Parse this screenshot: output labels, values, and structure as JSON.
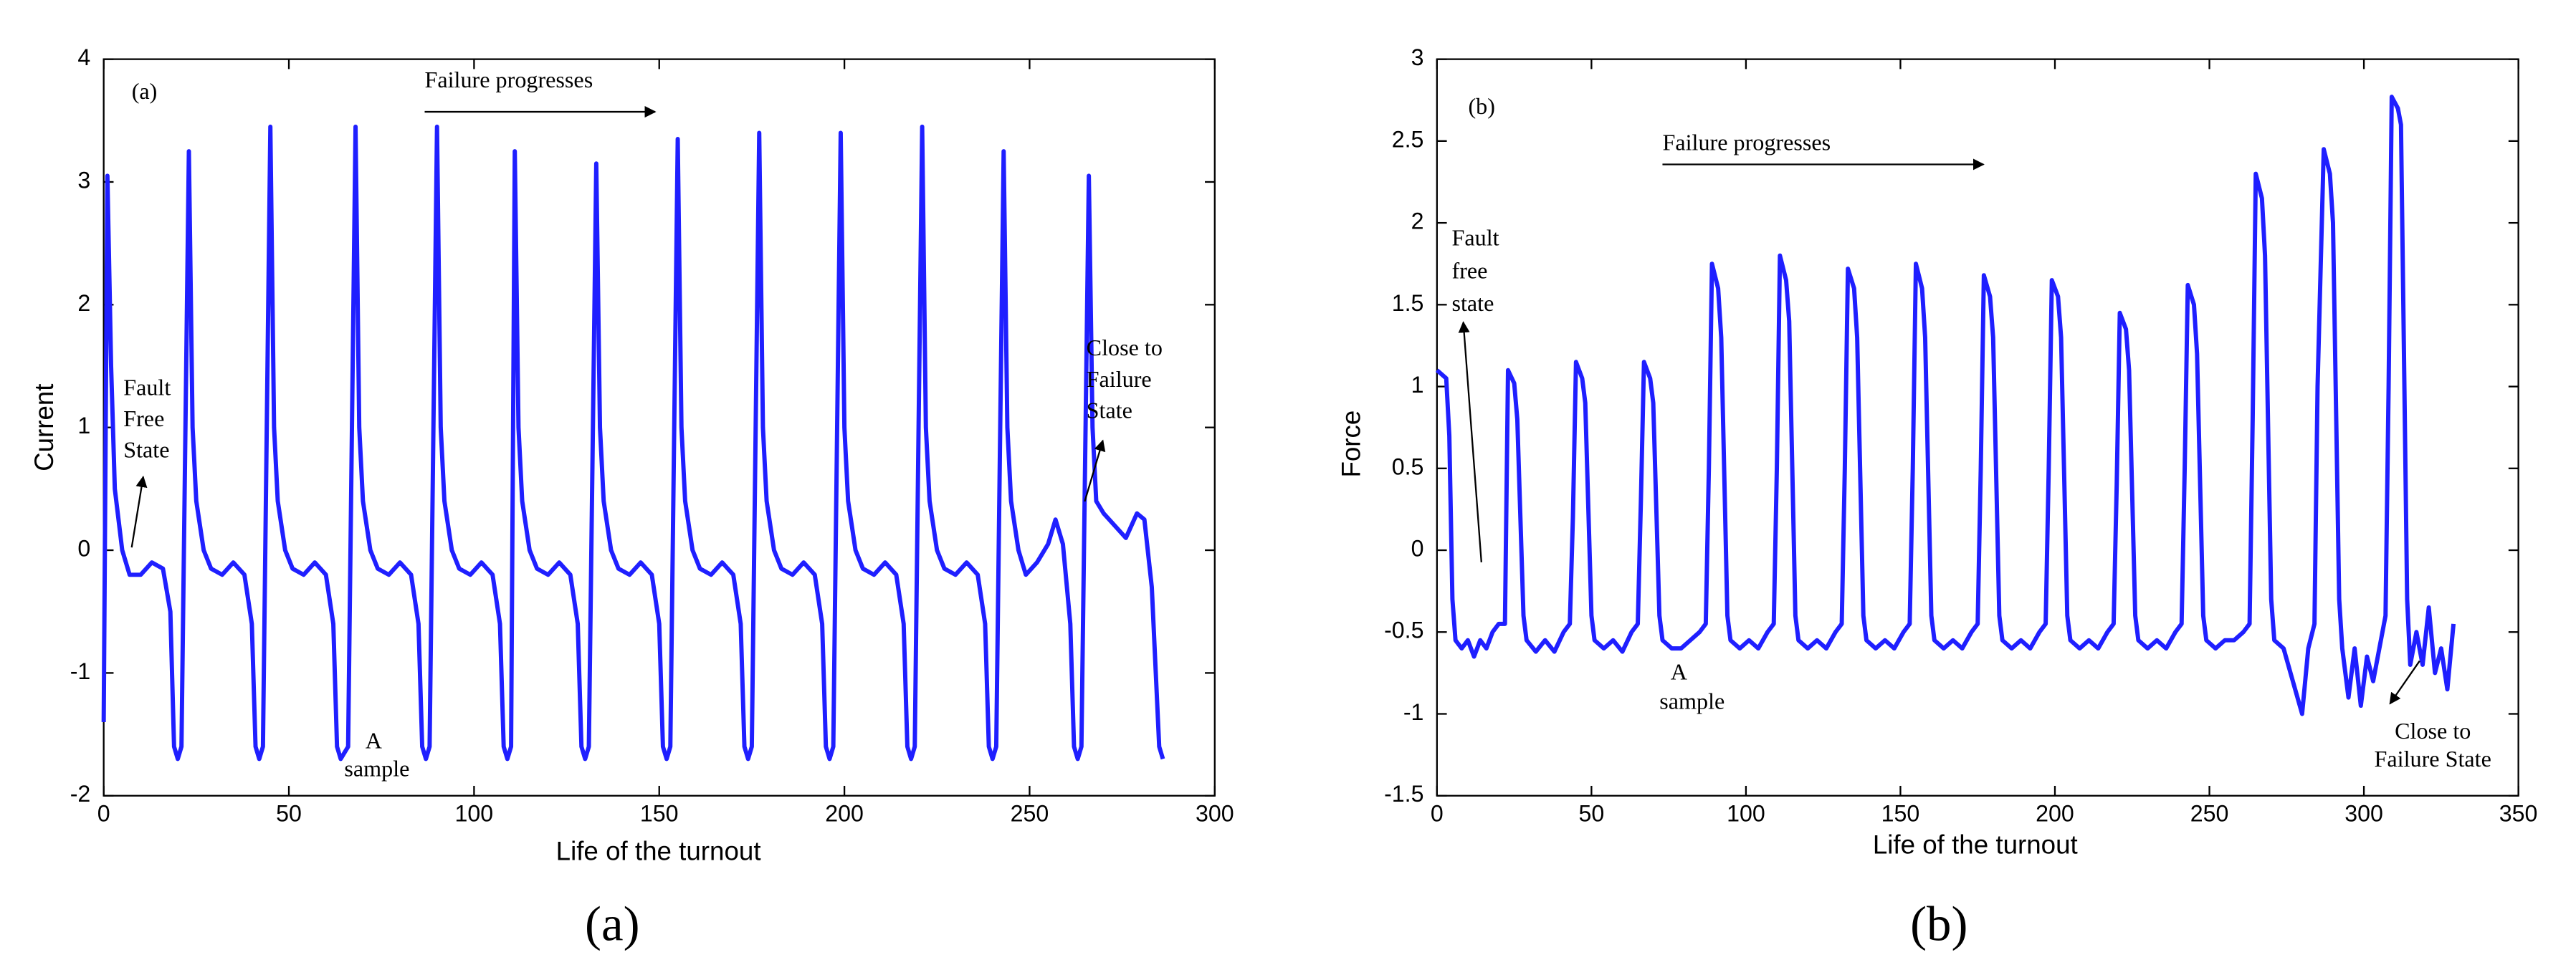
{
  "chart_data": [
    {
      "type": "line",
      "panel_label": "(a)",
      "caption": "(a)",
      "xlabel": "Life of the turnout",
      "ylabel": "Current",
      "xlim": [
        0,
        300
      ],
      "xticks": [
        0,
        50,
        100,
        150,
        200,
        250,
        300
      ],
      "ylim": [
        -2,
        4
      ],
      "yticks": [
        -2,
        -1,
        0,
        1,
        2,
        3,
        4
      ],
      "color": "#1f1fff",
      "annotations": [
        {
          "lines": [
            "Failure progresses"
          ]
        },
        {
          "lines": [
            "Fault",
            "Free",
            "State"
          ]
        },
        {
          "lines": [
            "A",
            "sample"
          ]
        },
        {
          "lines": [
            "Close to",
            "Failure",
            "State"
          ]
        }
      ],
      "x": [
        0,
        1,
        2,
        3,
        5,
        7,
        10,
        13,
        16,
        18,
        19,
        20,
        21,
        23,
        24,
        25,
        27,
        29,
        32,
        35,
        38,
        40,
        41,
        42,
        43,
        45,
        46,
        47,
        49,
        51,
        54,
        57,
        60,
        62,
        63,
        64,
        66,
        68,
        69,
        70,
        72,
        74,
        77,
        80,
        83,
        85,
        86,
        87,
        88,
        90,
        91,
        92,
        94,
        96,
        99,
        102,
        105,
        107,
        108,
        109,
        110,
        111,
        112,
        113,
        115,
        117,
        120,
        123,
        126,
        128,
        129,
        130,
        131,
        133,
        134,
        135,
        137,
        139,
        142,
        145,
        148,
        150,
        151,
        152,
        153,
        155,
        156,
        157,
        159,
        161,
        164,
        167,
        170,
        172,
        173,
        174,
        175,
        177,
        178,
        179,
        181,
        183,
        186,
        189,
        192,
        194,
        195,
        196,
        197,
        199,
        200,
        201,
        203,
        205,
        208,
        211,
        214,
        216,
        217,
        218,
        219,
        221,
        222,
        223,
        225,
        227,
        230,
        233,
        236,
        238,
        239,
        240,
        241,
        243,
        244,
        245,
        247,
        249,
        252,
        255,
        257,
        259,
        261,
        262,
        263,
        264,
        266,
        267,
        268,
        270,
        273,
        276,
        279,
        281,
        283,
        285,
        286
      ],
      "values": [
        -1.4,
        3.05,
        1.5,
        0.5,
        0.0,
        -0.2,
        -0.2,
        -0.1,
        -0.15,
        -0.5,
        -1.6,
        -1.7,
        -1.6,
        3.25,
        1.0,
        0.4,
        0.0,
        -0.15,
        -0.2,
        -0.1,
        -0.2,
        -0.6,
        -1.6,
        -1.7,
        -1.6,
        3.45,
        1.0,
        0.4,
        0.0,
        -0.15,
        -0.2,
        -0.1,
        -0.2,
        -0.6,
        -1.6,
        -1.7,
        -1.6,
        3.45,
        1.0,
        0.4,
        0.0,
        -0.15,
        -0.2,
        -0.1,
        -0.2,
        -0.6,
        -1.6,
        -1.7,
        -1.6,
        3.45,
        1.0,
        0.4,
        0.0,
        -0.15,
        -0.2,
        -0.1,
        -0.2,
        -0.6,
        -1.6,
        -1.7,
        -1.6,
        3.25,
        1.0,
        0.4,
        0.0,
        -0.15,
        -0.2,
        -0.1,
        -0.2,
        -0.6,
        -1.6,
        -1.7,
        -1.6,
        3.15,
        1.0,
        0.4,
        0.0,
        -0.15,
        -0.2,
        -0.1,
        -0.2,
        -0.6,
        -1.6,
        -1.7,
        -1.6,
        3.35,
        1.0,
        0.4,
        0.0,
        -0.15,
        -0.2,
        -0.1,
        -0.2,
        -0.6,
        -1.6,
        -1.7,
        -1.6,
        3.4,
        1.0,
        0.4,
        0.0,
        -0.15,
        -0.2,
        -0.1,
        -0.2,
        -0.6,
        -1.6,
        -1.7,
        -1.6,
        3.4,
        1.0,
        0.4,
        0.0,
        -0.15,
        -0.2,
        -0.1,
        -0.2,
        -0.6,
        -1.6,
        -1.7,
        -1.6,
        3.45,
        1.0,
        0.4,
        0.0,
        -0.15,
        -0.2,
        -0.1,
        -0.2,
        -0.6,
        -1.6,
        -1.7,
        -1.6,
        3.25,
        1.0,
        0.4,
        0.0,
        -0.2,
        -0.1,
        0.05,
        0.25,
        0.05,
        -0.6,
        -1.6,
        -1.7,
        -1.6,
        3.05,
        1.0,
        0.4,
        0.3,
        0.2,
        0.1,
        0.3,
        0.25,
        -0.3,
        -1.6,
        -1.7
      ]
    },
    {
      "type": "line",
      "panel_label": "(b)",
      "caption": "(b)",
      "xlabel": "Life of the turnout",
      "ylabel": "Force",
      "xlim": [
        0,
        350
      ],
      "xticks": [
        0,
        50,
        100,
        150,
        200,
        250,
        300,
        350
      ],
      "ylim": [
        -1.5,
        3
      ],
      "yticks": [
        -1.5,
        -1,
        -0.5,
        0,
        0.5,
        1,
        1.5,
        2,
        2.5,
        3
      ],
      "color": "#1f1fff",
      "annotations": [
        {
          "lines": [
            "Failure progresses"
          ]
        },
        {
          "lines": [
            "Fault",
            "free",
            "state"
          ]
        },
        {
          "lines": [
            "A",
            "sample"
          ]
        },
        {
          "lines": [
            "Close to",
            "Failure State"
          ]
        }
      ],
      "x": [
        0,
        3,
        4,
        5,
        6,
        8,
        10,
        12,
        14,
        16,
        18,
        20,
        22,
        23,
        25,
        26,
        28,
        29,
        32,
        35,
        38,
        41,
        43,
        44,
        45,
        47,
        48,
        50,
        51,
        54,
        57,
        60,
        63,
        65,
        66,
        67,
        69,
        70,
        72,
        73,
        76,
        79,
        82,
        85,
        87,
        88,
        89,
        91,
        92,
        94,
        95,
        98,
        101,
        104,
        107,
        109,
        110,
        111,
        113,
        114,
        116,
        117,
        120,
        123,
        126,
        129,
        131,
        132,
        133,
        135,
        136,
        138,
        139,
        142,
        145,
        148,
        151,
        153,
        154,
        155,
        157,
        158,
        160,
        161,
        164,
        167,
        170,
        173,
        175,
        176,
        177,
        179,
        180,
        182,
        183,
        186,
        189,
        192,
        195,
        197,
        198,
        199,
        201,
        202,
        204,
        205,
        208,
        211,
        214,
        217,
        219,
        220,
        221,
        223,
        224,
        226,
        227,
        230,
        233,
        236,
        239,
        241,
        242,
        243,
        245,
        246,
        248,
        249,
        252,
        255,
        258,
        261,
        263,
        264,
        265,
        267,
        268,
        270,
        271,
        274,
        277,
        280,
        282,
        284,
        285,
        287,
        289,
        290,
        292,
        293,
        295,
        297,
        299,
        301,
        303,
        305,
        307,
        308,
        309,
        311,
        312,
        314,
        315,
        317,
        319,
        321,
        323,
        325,
        327,
        329
      ],
      "values": [
        1.1,
        1.05,
        0.7,
        -0.3,
        -0.55,
        -0.6,
        -0.55,
        -0.65,
        -0.55,
        -0.6,
        -0.5,
        -0.45,
        -0.45,
        1.1,
        1.02,
        0.8,
        -0.4,
        -0.55,
        -0.62,
        -0.55,
        -0.62,
        -0.5,
        -0.45,
        0.2,
        1.15,
        1.05,
        0.9,
        -0.4,
        -0.55,
        -0.6,
        -0.55,
        -0.62,
        -0.5,
        -0.45,
        0.3,
        1.15,
        1.05,
        0.9,
        -0.4,
        -0.55,
        -0.6,
        -0.6,
        -0.55,
        -0.5,
        -0.45,
        0.5,
        1.75,
        1.6,
        1.3,
        -0.4,
        -0.55,
        -0.6,
        -0.55,
        -0.6,
        -0.5,
        -0.45,
        0.5,
        1.8,
        1.65,
        1.4,
        -0.4,
        -0.55,
        -0.6,
        -0.55,
        -0.6,
        -0.5,
        -0.45,
        0.5,
        1.72,
        1.6,
        1.3,
        -0.4,
        -0.55,
        -0.6,
        -0.55,
        -0.6,
        -0.5,
        -0.45,
        0.5,
        1.75,
        1.6,
        1.3,
        -0.4,
        -0.55,
        -0.6,
        -0.55,
        -0.6,
        -0.5,
        -0.45,
        0.5,
        1.68,
        1.55,
        1.3,
        -0.4,
        -0.55,
        -0.6,
        -0.55,
        -0.6,
        -0.5,
        -0.45,
        0.5,
        1.65,
        1.55,
        1.3,
        -0.4,
        -0.55,
        -0.6,
        -0.55,
        -0.6,
        -0.5,
        -0.45,
        0.4,
        1.45,
        1.35,
        1.1,
        -0.4,
        -0.55,
        -0.6,
        -0.55,
        -0.6,
        -0.5,
        -0.45,
        0.5,
        1.62,
        1.5,
        1.2,
        -0.4,
        -0.55,
        -0.6,
        -0.55,
        -0.55,
        -0.5,
        -0.45,
        0.8,
        2.3,
        2.15,
        1.8,
        -0.3,
        -0.55,
        -0.6,
        -0.8,
        -1.0,
        -0.6,
        -0.45,
        1.0,
        2.45,
        2.3,
        2.0,
        -0.3,
        -0.6,
        -0.9,
        -0.6,
        -0.95,
        -0.65,
        -0.8,
        -0.6,
        -0.4,
        1.0,
        2.77,
        2.7,
        2.6,
        -0.3,
        -0.7,
        -0.5,
        -0.7,
        -0.35,
        -0.75,
        -0.6,
        -0.85,
        -0.45
      ]
    }
  ]
}
